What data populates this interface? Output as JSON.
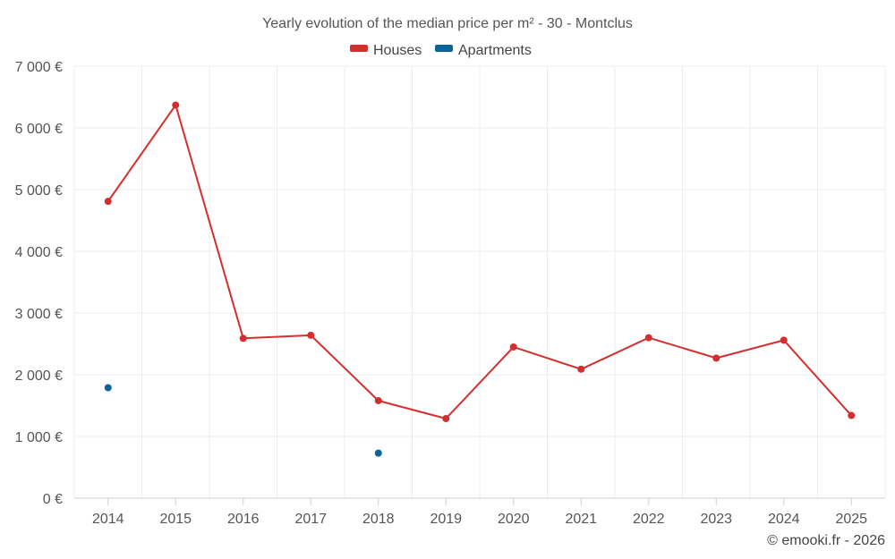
{
  "chart_data": {
    "type": "line",
    "title": "Yearly evolution of the median price per m² - 30 - Montclus",
    "categories": [
      "2014",
      "2015",
      "2016",
      "2017",
      "2018",
      "2019",
      "2020",
      "2021",
      "2022",
      "2023",
      "2024",
      "2025"
    ],
    "ylim": [
      0,
      7000
    ],
    "yticks": [
      0,
      1000,
      2000,
      3000,
      4000,
      5000,
      6000,
      7000
    ],
    "ytick_labels": [
      "0 €",
      "1 000 €",
      "2 000 €",
      "3 000 €",
      "4 000 €",
      "5 000 €",
      "6 000 €",
      "7 000 €"
    ],
    "grid": true,
    "legend_position": "top-center",
    "series": [
      {
        "name": "Houses",
        "color": "#d32f2f",
        "values": [
          4810,
          6370,
          2590,
          2640,
          1580,
          1290,
          2450,
          2090,
          2600,
          2270,
          2560,
          1340
        ]
      },
      {
        "name": "Apartments",
        "color": "#0b6396",
        "values": [
          1790,
          null,
          null,
          null,
          730,
          null,
          null,
          null,
          null,
          null,
          null,
          null
        ]
      }
    ]
  },
  "credit": "© emooki.fr - 2026"
}
